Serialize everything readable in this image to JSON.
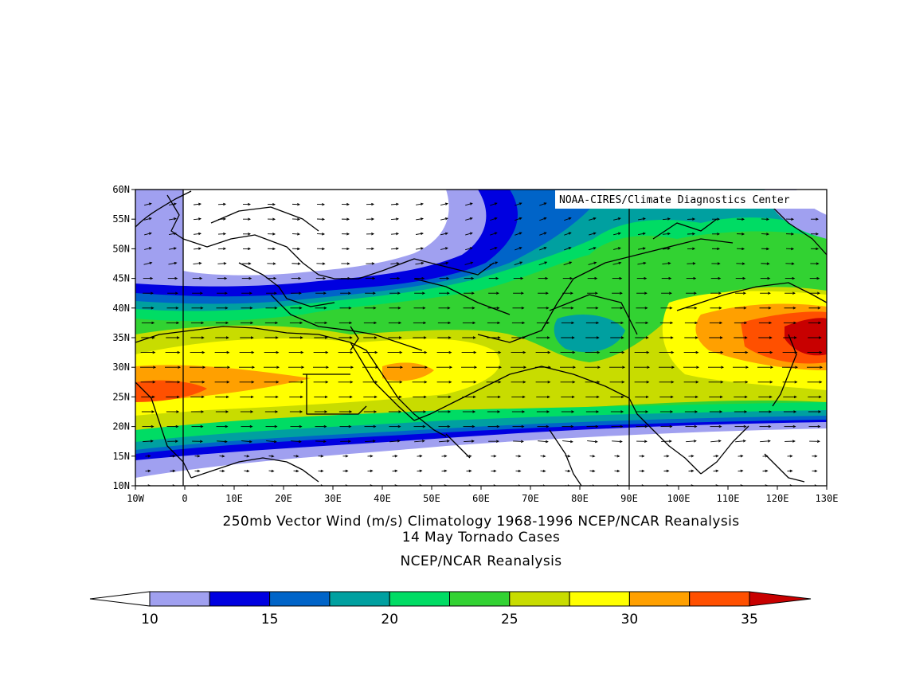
{
  "map": {
    "credit": "NOAA-CIRES/Climate Diagnostics Center",
    "lat_labels": [
      "60N",
      "55N",
      "50N",
      "45N",
      "40N",
      "35N",
      "30N",
      "25N",
      "20N",
      "15N",
      "10N"
    ],
    "lon_labels": [
      "10W",
      "0",
      "10E",
      "20E",
      "30E",
      "40E",
      "50E",
      "60E",
      "70E",
      "80E",
      "90E",
      "100E",
      "110E",
      "120E",
      "130E"
    ],
    "lat_range": [
      10,
      60
    ],
    "lon_range": [
      -10,
      130
    ]
  },
  "caption": {
    "line1": "250mb Vector Wind (m/s) Climatology 1968-1996 NCEP/NCAR Reanalysis",
    "line2": "14 May Tornado Cases",
    "line3": "NCEP/NCAR Reanalysis"
  },
  "colorbar": {
    "labels": [
      "10",
      "15",
      "20",
      "25",
      "30",
      "35"
    ],
    "colors": [
      "#ffffff",
      "#a0a0f0",
      "#0000e0",
      "#0064c8",
      "#00a0a0",
      "#00dc64",
      "#32d232",
      "#c8dc00",
      "#ffff00",
      "#ffa000",
      "#ff5000",
      "#c80000"
    ]
  }
}
